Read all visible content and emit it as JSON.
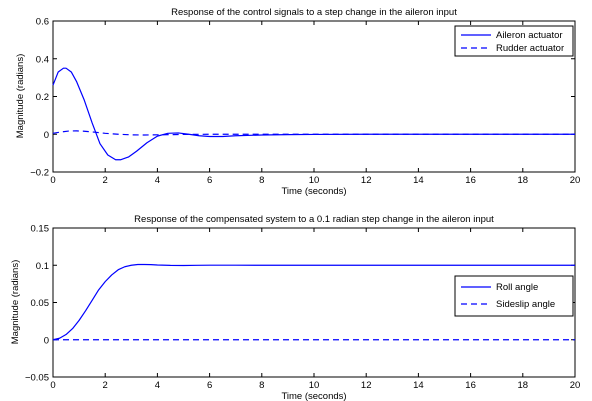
{
  "colors": {
    "series": "#0000ff",
    "axes": "#000000",
    "background": "#ffffff"
  },
  "chart_data": [
    {
      "type": "line",
      "title": "Response of the control signals to a step change in the aileron input",
      "xlabel": "Time (seconds)",
      "ylabel": "Magnitude (radians)",
      "xlim": [
        0,
        20
      ],
      "ylim": [
        -0.2,
        0.6
      ],
      "xticks": [
        0,
        2,
        4,
        6,
        8,
        10,
        12,
        14,
        16,
        18,
        20
      ],
      "yticks": [
        -0.2,
        0,
        0.2,
        0.4,
        0.6
      ],
      "xtick_labels": [
        "0",
        "2",
        "4",
        "6",
        "8",
        "10",
        "12",
        "14",
        "16",
        "18",
        "20"
      ],
      "ytick_labels": [
        "−0.2",
        "0",
        "0.2",
        "0.4",
        "0.6"
      ],
      "grid": false,
      "legend_position": "top-right",
      "series": [
        {
          "name": "Aileron actuator",
          "style": "solid",
          "x": [
            0,
            0.2,
            0.4,
            0.5,
            0.7,
            0.9,
            1.2,
            1.5,
            1.8,
            2.1,
            2.4,
            2.6,
            2.9,
            3.2,
            3.6,
            4.0,
            4.4,
            4.8,
            5.2,
            5.6,
            6.0,
            6.5,
            7.0,
            8.0,
            9.0,
            10,
            12,
            14,
            16,
            18,
            20
          ],
          "y": [
            0.26,
            0.33,
            0.35,
            0.35,
            0.33,
            0.28,
            0.18,
            0.06,
            -0.05,
            -0.11,
            -0.135,
            -0.135,
            -0.12,
            -0.09,
            -0.045,
            -0.01,
            0.005,
            0.007,
            0.0,
            -0.008,
            -0.012,
            -0.012,
            -0.008,
            -0.004,
            -0.002,
            -0.001,
            0,
            0,
            0,
            0,
            0
          ]
        },
        {
          "name": "Rudder actuator",
          "style": "dashed",
          "x": [
            0,
            0.3,
            0.6,
            0.9,
            1.2,
            1.6,
            2.0,
            2.5,
            3.0,
            3.5,
            4.0,
            5.0,
            6.0,
            8.0,
            10,
            12,
            14,
            16,
            18,
            20
          ],
          "y": [
            0.005,
            0.012,
            0.017,
            0.018,
            0.016,
            0.011,
            0.005,
            0.0,
            -0.003,
            -0.004,
            -0.003,
            -0.001,
            0,
            0,
            0,
            0,
            0,
            0,
            0,
            0
          ]
        }
      ]
    },
    {
      "type": "line",
      "title": "Response of the compensated system to a 0.1 radian step change in the aileron input",
      "xlabel": "Time (seconds)",
      "ylabel": "Magnitude (radians)",
      "xlim": [
        0,
        20
      ],
      "ylim": [
        -0.05,
        0.15
      ],
      "xticks": [
        0,
        2,
        4,
        6,
        8,
        10,
        12,
        14,
        16,
        18,
        20
      ],
      "yticks": [
        -0.05,
        0,
        0.05,
        0.1,
        0.15
      ],
      "xtick_labels": [
        "0",
        "2",
        "4",
        "6",
        "8",
        "10",
        "12",
        "14",
        "16",
        "18",
        "20"
      ],
      "ytick_labels": [
        "−0.05",
        "0",
        "0.05",
        "0.1",
        "0.15"
      ],
      "grid": false,
      "legend_position": "right",
      "series": [
        {
          "name": "Roll angle",
          "style": "solid",
          "x": [
            0,
            0.25,
            0.5,
            0.75,
            1.0,
            1.25,
            1.5,
            1.75,
            2.0,
            2.25,
            2.5,
            2.75,
            3.0,
            3.25,
            3.5,
            3.75,
            4.0,
            4.5,
            5.0,
            5.5,
            6.0,
            7.0,
            8.0,
            10,
            12,
            14,
            16,
            18,
            20
          ],
          "y": [
            0,
            0.002,
            0.007,
            0.015,
            0.026,
            0.039,
            0.053,
            0.067,
            0.078,
            0.087,
            0.094,
            0.098,
            0.1,
            0.101,
            0.101,
            0.1008,
            0.1003,
            0.0998,
            0.0997,
            0.0999,
            0.1001,
            0.1001,
            0.1,
            0.1,
            0.1,
            0.1,
            0.1,
            0.1,
            0.1
          ]
        },
        {
          "name": "Sideslip angle",
          "style": "dashed",
          "x": [
            0,
            20
          ],
          "y": [
            0,
            0
          ]
        }
      ]
    }
  ]
}
